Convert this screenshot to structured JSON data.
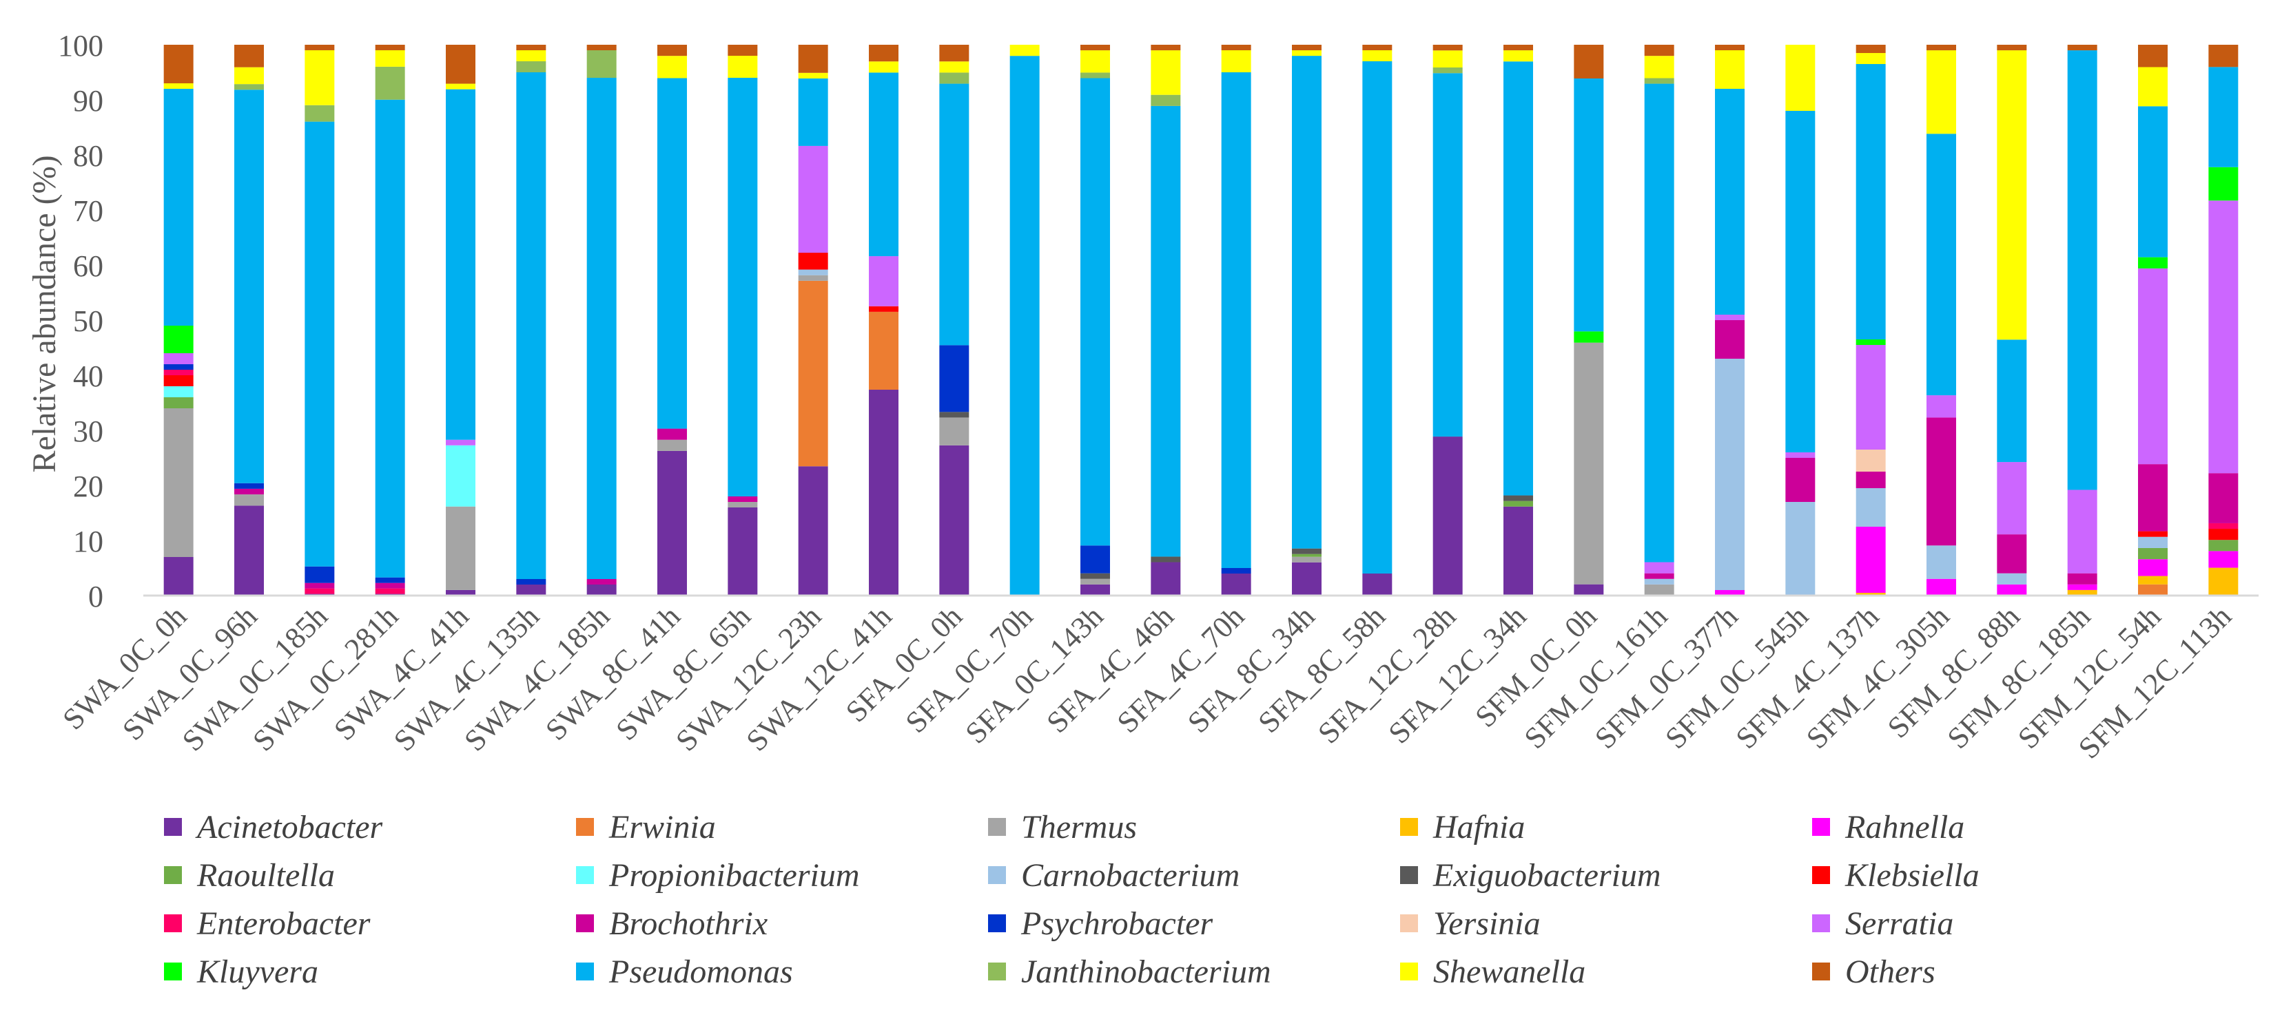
{
  "chart_data": {
    "type": "bar",
    "stacked": true,
    "ylabel": "Relative abundance (%)",
    "xlabel": "",
    "ylim": [
      0,
      100
    ],
    "yticks": [
      0,
      10,
      20,
      30,
      40,
      50,
      60,
      70,
      80,
      90,
      100
    ],
    "legend_position": "bottom",
    "categories": [
      "SWA_0C_0h",
      "SWA_0C_96h",
      "SWA_0C_185h",
      "SWA_0C_281h",
      "SWA_4C_41h",
      "SWA_4C_135h",
      "SWA_4C_185h",
      "SWA_8C_41h",
      "SWA_8C_65h",
      "SWA_12C_23h",
      "SWA_12C_41h",
      "SFA_0C_0h",
      "SFA_0C_70h",
      "SFA_0C_143h",
      "SFA_4C_46h",
      "SFA_4C_70h",
      "SFA_8C_34h",
      "SFA_8C_58h",
      "SFA_12C_28h",
      "SFA_12C_34h",
      "SFM_0C_0h",
      "SFM_0C_161h",
      "SFM_0C_377h",
      "SFM_0C_545h",
      "SFM_4C_137h",
      "SFM_4C_305h",
      "SFM_8C_88h",
      "SFM_8C_185h",
      "SFM_12C_54h",
      "SFM_12C_113h"
    ],
    "series": [
      {
        "name": "Acinetobacter",
        "color": "#7030A0",
        "values": [
          7,
          16,
          0.3,
          0.3,
          1,
          2,
          2,
          26,
          16,
          23,
          37,
          27,
          0,
          2,
          6,
          4,
          6,
          4,
          28,
          16,
          2,
          0,
          0,
          0,
          0,
          0,
          0,
          0,
          0,
          0
        ]
      },
      {
        "name": "Erwinia",
        "color": "#ED7D31",
        "values": [
          0,
          0,
          0,
          0,
          0,
          0,
          0,
          0,
          0,
          33,
          14,
          0,
          0,
          0,
          0,
          0,
          0,
          0,
          0,
          0,
          0,
          0,
          0,
          0,
          0,
          0,
          0,
          0,
          2,
          0
        ]
      },
      {
        "name": "Thermus",
        "color": "#A5A5A5",
        "values": [
          27,
          2,
          0,
          0,
          15,
          0,
          0,
          2,
          1,
          1,
          0,
          5,
          0,
          1,
          0,
          0,
          1,
          0,
          0,
          0,
          43,
          2,
          0,
          0,
          0,
          0,
          0,
          0,
          0,
          0
        ]
      },
      {
        "name": "Hafnia",
        "color": "#FFC000",
        "values": [
          0,
          0,
          0,
          0,
          0,
          0,
          0,
          0,
          0,
          0,
          0,
          0,
          0,
          0,
          0,
          0,
          0,
          0,
          0,
          0,
          0,
          0,
          0,
          0,
          0.5,
          0,
          0,
          1,
          1.5,
          5
        ]
      },
      {
        "name": "Rahnella",
        "color": "#FF00FF",
        "values": [
          0,
          0,
          0,
          0,
          0,
          0,
          0,
          0,
          0,
          0,
          0,
          0,
          0,
          0,
          0,
          0,
          0,
          0,
          0,
          0,
          0,
          0,
          1,
          0,
          12,
          3,
          2,
          1,
          3,
          3
        ]
      },
      {
        "name": "Raoultella",
        "color": "#70AD47",
        "values": [
          2,
          0,
          0,
          0,
          0,
          0,
          0,
          0,
          0,
          0,
          0,
          0,
          0,
          0,
          0,
          0,
          0.5,
          0,
          0,
          1,
          0,
          0,
          0,
          0,
          0,
          0,
          0,
          0,
          2,
          2
        ]
      },
      {
        "name": "Propionibacterium",
        "color": "#66FFFF",
        "values": [
          2,
          0,
          0,
          0,
          11,
          0,
          0,
          0,
          0,
          0,
          0,
          0,
          0,
          0,
          0,
          0,
          0,
          0,
          0,
          0,
          0,
          0,
          0,
          0,
          0,
          0,
          0,
          0,
          0,
          0
        ]
      },
      {
        "name": "Carnobacterium",
        "color": "#9DC3E6",
        "values": [
          0,
          0,
          0,
          0,
          0,
          0,
          0,
          0,
          0,
          1,
          0,
          0,
          0,
          0,
          0,
          0,
          0,
          0,
          0,
          0,
          0,
          1,
          42,
          17,
          7,
          6,
          2,
          0,
          2,
          0
        ]
      },
      {
        "name": "Exiguobacterium",
        "color": "#595959",
        "values": [
          0,
          0,
          0,
          0,
          0,
          0,
          0,
          0,
          0,
          0,
          0,
          1,
          0,
          1,
          1,
          0,
          1,
          0,
          0,
          1,
          0,
          0,
          0,
          0,
          0,
          0,
          0,
          0,
          0,
          0
        ]
      },
      {
        "name": "Klebsiella",
        "color": "#FF0000",
        "values": [
          2,
          0,
          0,
          0,
          0,
          0,
          0,
          0,
          0,
          3,
          1,
          0,
          0,
          0,
          0,
          0,
          0,
          0,
          0,
          0,
          0,
          0,
          0,
          0,
          0,
          0,
          0,
          0,
          1,
          2
        ]
      },
      {
        "name": "Enterobacter",
        "color": "#FF0066",
        "values": [
          1,
          0,
          1,
          1,
          0,
          0,
          0,
          0,
          0,
          0,
          0,
          0,
          0,
          0,
          0,
          0,
          0,
          0,
          0,
          0,
          0,
          0,
          0,
          0,
          0,
          0,
          0,
          0,
          0,
          1
        ]
      },
      {
        "name": "Brochothrix",
        "color": "#CC0099",
        "values": [
          0,
          1,
          1,
          1,
          0,
          0,
          1,
          2,
          1,
          0,
          0,
          0,
          0,
          0,
          0,
          0,
          0,
          0,
          0,
          0,
          0,
          1,
          7,
          8,
          3,
          23,
          7,
          2,
          12,
          9
        ]
      },
      {
        "name": "Psychrobacter",
        "color": "#0033CC",
        "values": [
          1,
          1,
          3,
          1,
          0,
          1,
          0,
          0,
          0,
          0,
          0,
          12,
          0,
          5,
          0,
          1,
          0,
          0,
          0,
          0,
          0,
          0,
          0,
          0,
          0,
          0,
          0,
          0,
          0,
          0
        ]
      },
      {
        "name": "Yersinia",
        "color": "#F8CBAD",
        "values": [
          0,
          0,
          0,
          0,
          0,
          0,
          0,
          0,
          0,
          0,
          0,
          0,
          0,
          0,
          0,
          0,
          0,
          0,
          0,
          0,
          0,
          0,
          0,
          0,
          4,
          0,
          0,
          0,
          0,
          0
        ]
      },
      {
        "name": "Serratia",
        "color": "#CC66FF",
        "values": [
          2,
          0,
          0,
          0,
          1,
          0,
          0,
          0,
          0,
          19,
          9,
          0,
          0,
          0,
          0,
          0,
          0,
          0,
          0,
          0,
          0,
          2,
          1,
          1,
          19,
          4,
          13,
          15,
          35,
          49
        ]
      },
      {
        "name": "Kluyvera",
        "color": "#00FF00",
        "values": [
          5,
          0,
          0,
          0,
          0,
          0,
          0,
          0,
          0,
          0,
          0,
          0,
          0,
          0,
          0,
          0,
          0,
          0,
          0,
          0,
          2,
          0,
          0,
          0,
          1,
          0,
          0,
          0,
          2,
          6
        ]
      },
      {
        "name": "Pseudomonas",
        "color": "#00B0F0",
        "values": [
          43,
          70,
          81,
          87,
          63,
          92,
          91,
          63,
          76,
          12,
          33,
          47,
          97,
          84,
          81,
          90,
          89,
          93,
          64,
          78,
          45,
          86,
          41,
          62,
          50,
          47,
          22,
          79,
          27,
          18
        ]
      },
      {
        "name": "Janthinobacterium",
        "color": "#8FBC5A",
        "values": [
          0,
          1,
          3,
          6,
          0,
          2,
          5,
          0,
          0,
          0,
          0,
          2,
          0,
          1,
          2,
          0,
          0,
          0,
          1,
          0,
          0,
          1,
          0,
          0,
          0,
          0,
          0,
          0,
          0,
          0
        ]
      },
      {
        "name": "Shewanella",
        "color": "#FFFF00",
        "values": [
          1,
          3,
          10,
          3,
          1,
          2,
          0,
          4,
          4,
          1,
          2,
          2,
          2,
          4,
          8,
          4,
          1,
          2,
          3,
          2,
          0,
          4,
          7,
          12,
          2,
          15,
          52,
          0,
          7,
          0
        ]
      },
      {
        "name": "Others",
        "color": "#C55A11",
        "values": [
          7,
          4,
          1,
          1,
          7,
          1,
          1,
          2,
          2,
          5,
          3,
          3,
          0,
          1,
          1,
          1,
          1,
          1,
          1,
          1,
          6,
          2,
          1,
          0,
          1.5,
          1,
          1,
          1,
          4,
          4
        ]
      }
    ]
  }
}
